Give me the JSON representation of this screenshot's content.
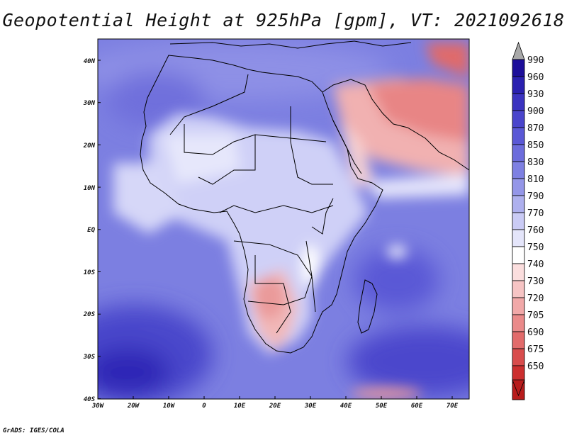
{
  "title": "Geopotential Height at 925hPa [gpm], VT: 2021092618",
  "credit": "GrADS: IGES/COLA",
  "map": {
    "lat_labels": [
      "40N",
      "30N",
      "20N",
      "10N",
      "EQ",
      "10S",
      "20S",
      "30S",
      "40S"
    ],
    "lon_labels": [
      "30W",
      "20W",
      "10W",
      "0",
      "10E",
      "20E",
      "30E",
      "40E",
      "50E",
      "60E",
      "70E"
    ],
    "lat_range": [
      -40,
      45
    ],
    "lon_range": [
      -30,
      75
    ]
  },
  "colorbar": {
    "levels": [
      "990",
      "960",
      "930",
      "900",
      "870",
      "850",
      "830",
      "810",
      "790",
      "770",
      "760",
      "750",
      "740",
      "730",
      "720",
      "705",
      "690",
      "675",
      "650"
    ],
    "colors": [
      "#1c0e9a",
      "#2a20b0",
      "#3b33c0",
      "#4a45cc",
      "#5a58d6",
      "#6c6cdc",
      "#7e80e2",
      "#9496e8",
      "#aeb0ee",
      "#cacbf5",
      "#e4e5fa",
      "#ffffff",
      "#fbdede",
      "#f6c4c4",
      "#f1a8a8",
      "#ea8a8a",
      "#e26b6b",
      "#d84c4c",
      "#cc2f2f",
      "#b81c1c"
    ],
    "over_color": "#a9a9a9",
    "under_color": "#b81c1c"
  }
}
